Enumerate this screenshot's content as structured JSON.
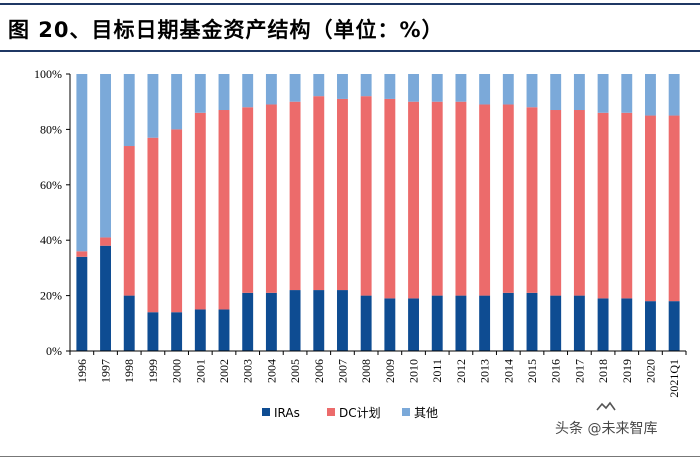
{
  "title": "图 20、目标日期基金资产结构（单位：%）",
  "watermark": {
    "logo_text": "未来智库",
    "text": "头条 @未来智库"
  },
  "colors": {
    "IRAs": "#0e4c92",
    "DC计划": "#ec6b6b",
    "其他": "#7ba9d9",
    "rule": "#1f3864"
  },
  "chart_data": {
    "type": "bar",
    "stacked": true,
    "title": "",
    "xlabel": "",
    "ylabel": "",
    "ylim": [
      0,
      100
    ],
    "yticks": [
      "0%",
      "20%",
      "40%",
      "60%",
      "80%",
      "100%"
    ],
    "ytick_values": [
      0,
      20,
      40,
      60,
      80,
      100
    ],
    "categories": [
      "1996",
      "1997",
      "1998",
      "1999",
      "2000",
      "2001",
      "2002",
      "2003",
      "2004",
      "2005",
      "2006",
      "2007",
      "2008",
      "2009",
      "2010",
      "2011",
      "2012",
      "2013",
      "2014",
      "2015",
      "2016",
      "2017",
      "2018",
      "2019",
      "2020",
      "2021Q1"
    ],
    "series": [
      {
        "name": "IRAs",
        "values": [
          34,
          38,
          20,
          14,
          14,
          15,
          15,
          21,
          21,
          22,
          22,
          22,
          20,
          19,
          19,
          20,
          20,
          20,
          21,
          21,
          20,
          20,
          19,
          19,
          18,
          18
        ]
      },
      {
        "name": "DC计划",
        "values": [
          2,
          3,
          54,
          63,
          66,
          71,
          72,
          67,
          68,
          68,
          70,
          69,
          72,
          72,
          71,
          70,
          70,
          69,
          68,
          67,
          67,
          67,
          67,
          67,
          67,
          67
        ]
      },
      {
        "name": "其他",
        "values": [
          64,
          59,
          26,
          23,
          20,
          14,
          13,
          12,
          11,
          10,
          8,
          9,
          8,
          9,
          10,
          10,
          10,
          11,
          11,
          12,
          13,
          13,
          14,
          14,
          15,
          15
        ]
      }
    ],
    "legend": [
      "IRAs",
      "DC计划",
      "其他"
    ],
    "legend_position": "bottom",
    "grid": false
  }
}
